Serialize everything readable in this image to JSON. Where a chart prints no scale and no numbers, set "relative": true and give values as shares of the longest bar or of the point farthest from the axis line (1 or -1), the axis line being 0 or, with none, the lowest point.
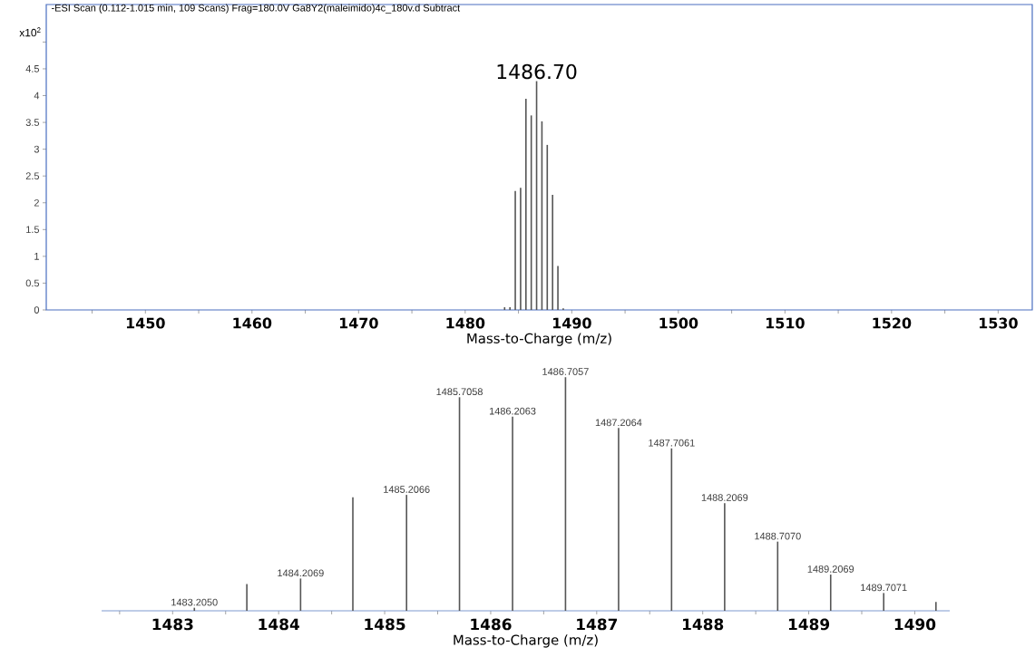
{
  "chart_data": [
    {
      "type": "bar",
      "title": "-ESI Scan (0.112-1.015 min, 109 Scans) Frag=180.0V Ga8Y2(maleimido)4c_180v.d  Subtract",
      "ylabel": "x10$^{2}$",
      "xlabel": "Mass-to-Charge (m/z)",
      "x": [
        1483.7,
        1484.2,
        1484.7,
        1485.2,
        1485.7,
        1486.2,
        1486.7,
        1487.2,
        1487.7,
        1488.2,
        1488.7,
        1489.2
      ],
      "values": [
        0.05,
        0.05,
        2.22,
        2.28,
        3.94,
        3.63,
        4.27,
        3.52,
        3.08,
        2.15,
        0.82,
        0.03
      ],
      "color": "#555555",
      "xlim": [
        1440.7,
        1533.2
      ],
      "xticks": [
        {
          "value": 1445,
          "label": null
        },
        1450,
        {
          "value": 1455,
          "label": null
        },
        1460,
        {
          "value": 1465,
          "label": null
        },
        1470,
        {
          "value": 1475,
          "label": null
        },
        1480,
        {
          "value": 1485,
          "label": null
        },
        1490,
        {
          "value": 1495,
          "label": null
        },
        1500,
        {
          "value": 1505,
          "label": null
        },
        1510,
        {
          "value": 1515,
          "label": null
        },
        1520,
        {
          "value": 1525,
          "label": null
        },
        1530
      ],
      "ylim": [
        0,
        5.7
      ],
      "yticks": [
        0,
        0.5,
        1,
        1.5,
        2,
        2.5,
        3,
        3.5,
        4,
        4.5,
        {
          "value": 5,
          "label": null
        }
      ],
      "annotations": [
        {
          "text": "1486.70",
          "x": 1486.7,
          "y": 4.27
        }
      ]
    },
    {
      "type": "bar",
      "relative": true,
      "xlabel": "Mass-to-Charge (m/z)",
      "x": [
        1483.205,
        1483.7,
        1484.2069,
        1484.7,
        1485.2066,
        1485.7058,
        1486.2063,
        1486.7057,
        1487.2064,
        1487.7061,
        1488.2069,
        1488.707,
        1489.2069,
        1489.7071,
        1490.2
      ],
      "values": [
        0.013,
        0.114,
        0.138,
        0.486,
        0.496,
        0.914,
        0.831,
        1,
        0.782,
        0.695,
        0.461,
        0.296,
        0.155,
        0.076,
        0.038
      ],
      "color": "#555555",
      "xlim": [
        1482.33,
        1490.33
      ],
      "xticks": [
        {
          "value": 1482.5,
          "label": null
        },
        1483,
        {
          "value": 1483.5,
          "label": null
        },
        1484,
        {
          "value": 1484.5,
          "label": null
        },
        1485,
        {
          "value": 1485.5,
          "label": null
        },
        1486,
        {
          "value": 1486.5,
          "label": null
        },
        1487,
        {
          "value": 1487.5,
          "label": null
        },
        1488,
        {
          "value": 1488.5,
          "label": null
        },
        1489,
        {
          "value": 1489.5,
          "label": null
        },
        1490
      ],
      "annotations": [
        {
          "text": "1483.2050",
          "x": 1483.205,
          "y": 0.013
        },
        {
          "text": "1484.2069",
          "x": 1484.2069,
          "y": 0.138
        },
        {
          "text": "1485.2066",
          "x": 1485.2066,
          "y": 0.496
        },
        {
          "text": "1485.7058",
          "x": 1485.7058,
          "y": 0.914
        },
        {
          "text": "1486.2063",
          "x": 1486.2063,
          "y": 0.831
        },
        {
          "text": "1486.7057",
          "x": 1486.7057,
          "y": 1
        },
        {
          "text": "1487.2064",
          "x": 1487.2064,
          "y": 0.782
        },
        {
          "text": "1487.7061",
          "x": 1487.7061,
          "y": 0.695
        },
        {
          "text": "1488.2069",
          "x": 1488.2069,
          "y": 0.461
        },
        {
          "text": "1488.7070",
          "x": 1488.707,
          "y": 0.296
        },
        {
          "text": "1489.2069",
          "x": 1489.2069,
          "y": 0.155
        },
        {
          "text": "1489.7071",
          "x": 1489.7071,
          "y": 0.076
        }
      ]
    }
  ]
}
